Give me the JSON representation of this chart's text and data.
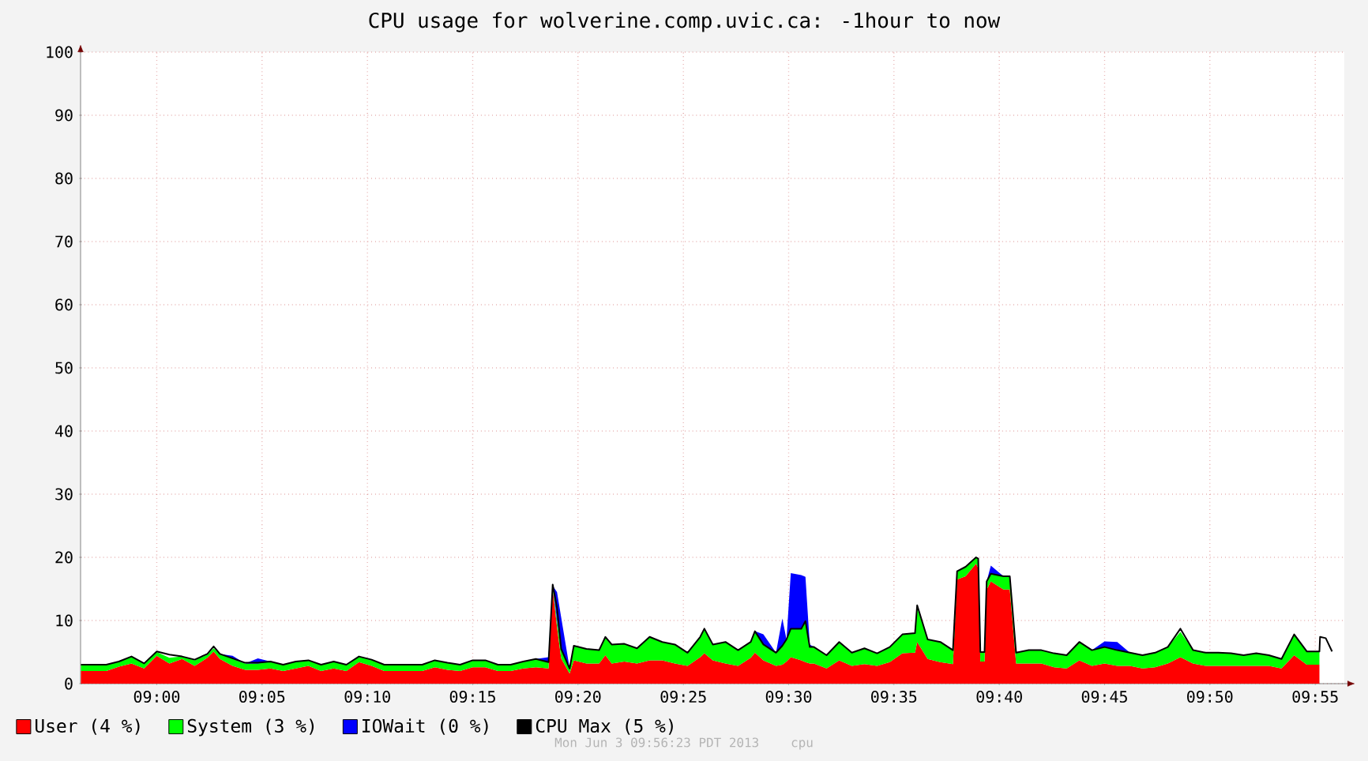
{
  "chart_data": {
    "type": "area",
    "title": "CPU usage for wolverine.comp.uvic.ca: -1hour to now",
    "stacked": true,
    "grid": true,
    "legend": "bottom",
    "xlim": [
      8.9397,
      9.9397
    ],
    "ylim": [
      0,
      100
    ],
    "xticks": [
      {
        "value": 9.0,
        "label": "09:00"
      },
      {
        "value": 9.0833,
        "label": "09:05"
      },
      {
        "value": 9.1667,
        "label": "09:10"
      },
      {
        "value": 9.25,
        "label": "09:15"
      },
      {
        "value": 9.3333,
        "label": "09:20"
      },
      {
        "value": 9.4167,
        "label": "09:25"
      },
      {
        "value": 9.5,
        "label": "09:30"
      },
      {
        "value": 9.5833,
        "label": "09:35"
      },
      {
        "value": 9.6667,
        "label": "09:40"
      },
      {
        "value": 9.75,
        "label": "09:45"
      },
      {
        "value": 9.8333,
        "label": "09:50"
      },
      {
        "value": 9.9167,
        "label": "09:55"
      }
    ],
    "yticks": [
      0,
      10,
      20,
      30,
      40,
      50,
      60,
      70,
      80,
      90,
      100
    ],
    "x": [
      8.94,
      8.95,
      8.96,
      8.97,
      8.98,
      8.99,
      9.0,
      9.01,
      9.02,
      9.03,
      9.04,
      9.045,
      9.05,
      9.06,
      9.07,
      9.08,
      9.09,
      9.1,
      9.11,
      9.12,
      9.13,
      9.14,
      9.15,
      9.16,
      9.17,
      9.18,
      9.19,
      9.2,
      9.21,
      9.22,
      9.23,
      9.24,
      9.25,
      9.26,
      9.27,
      9.28,
      9.29,
      9.3,
      9.31,
      9.3133,
      9.3167,
      9.32,
      9.3267,
      9.33,
      9.34,
      9.35,
      9.355,
      9.36,
      9.37,
      9.38,
      9.39,
      9.4,
      9.41,
      9.42,
      9.43,
      9.4333,
      9.44,
      9.45,
      9.46,
      9.47,
      9.4733,
      9.48,
      9.49,
      9.495,
      9.4983,
      9.5017,
      9.51,
      9.5133,
      9.5167,
      9.52,
      9.53,
      9.54,
      9.55,
      9.56,
      9.57,
      9.58,
      9.59,
      9.6,
      9.6017,
      9.61,
      9.62,
      9.63,
      9.6333,
      9.64,
      9.6483,
      9.65,
      9.6517,
      9.655,
      9.6567,
      9.66,
      9.67,
      9.675,
      9.68,
      9.69,
      9.7,
      9.71,
      9.72,
      9.73,
      9.74,
      9.75,
      9.76,
      9.77,
      9.78,
      9.79,
      9.8,
      9.81,
      9.82,
      9.83,
      9.84,
      9.85,
      9.86,
      9.87,
      9.88,
      9.89,
      9.9,
      9.91,
      9.92,
      9.9205,
      9.925,
      9.93
    ],
    "series": [
      {
        "name": "User (4 %)",
        "color": "#ff0000",
        "values": [
          2,
          2,
          2,
          2.7,
          3.2,
          2.4,
          4.4,
          3.2,
          3.9,
          2.8,
          4.1,
          5.1,
          3.9,
          2.8,
          2.2,
          2.2,
          2.4,
          2,
          2.4,
          2.8,
          2,
          2.4,
          2,
          3.4,
          2.8,
          2,
          2,
          2,
          2,
          2.6,
          2.2,
          2,
          2.6,
          2.6,
          2,
          2,
          2.4,
          2.6,
          2.4,
          15,
          9,
          4,
          1.6,
          3.7,
          3.2,
          3.2,
          4.5,
          3.2,
          3.5,
          3.2,
          3.7,
          3.7,
          3.2,
          2.8,
          4.2,
          4.8,
          3.7,
          3.2,
          2.8,
          4.1,
          4.9,
          3.7,
          2.8,
          3,
          3.5,
          4.2,
          3.7,
          3.4,
          3.2,
          3.2,
          2.4,
          3.7,
          2.8,
          3.1,
          2.8,
          3.4,
          4.8,
          4.9,
          6.6,
          3.9,
          3.4,
          3.1,
          16.5,
          17,
          19,
          18.3,
          3.5,
          3.5,
          14.9,
          16.2,
          14.9,
          14.9,
          3.2,
          3.2,
          3.2,
          2.6,
          2.4,
          3.7,
          2.8,
          3.2,
          2.8,
          2.8,
          2.4,
          2.6,
          3.2,
          4.2,
          3.2,
          2.8,
          2.8,
          2.8,
          2.8,
          2.8,
          2.8,
          2.4,
          4.5,
          3,
          3,
          null,
          null,
          null
        ]
      },
      {
        "name": "System (3 %)",
        "color": "#00ff00",
        "values": [
          1,
          1,
          1,
          0.8,
          1.1,
          0.8,
          0.6,
          0.9,
          0.4,
          0.9,
          0.5,
          0.5,
          0.8,
          1.1,
          1,
          1,
          1.1,
          1,
          1.1,
          0.9,
          1,
          1.1,
          1,
          0.9,
          1,
          1,
          1,
          1,
          1,
          1.1,
          1.1,
          1,
          1.1,
          1.1,
          1,
          1,
          1.1,
          1.3,
          1,
          0.5,
          1,
          1.5,
          0.8,
          2.3,
          2.3,
          2.1,
          2.9,
          3,
          2.8,
          2.4,
          3.7,
          2.9,
          3,
          2.1,
          3.2,
          3.9,
          2.5,
          3.4,
          2.5,
          2.5,
          3.4,
          2.5,
          2.1,
          3,
          3.5,
          4.5,
          5,
          6.5,
          2.6,
          2.6,
          2.1,
          2.9,
          2.1,
          2.5,
          2,
          2.4,
          3,
          3.1,
          5.4,
          3.1,
          3.2,
          2.2,
          1.3,
          1.5,
          1,
          1.5,
          1.5,
          1.5,
          1.3,
          1.2,
          2.1,
          2.1,
          1.7,
          2.1,
          2.1,
          2.2,
          2.1,
          2.9,
          2.5,
          2.6,
          2.5,
          2.1,
          2.1,
          2.3,
          2.6,
          4,
          2.1,
          2.1,
          2.1,
          2,
          1.7,
          2,
          1.7,
          1.5,
          3.3,
          2.1,
          2.1,
          null,
          null,
          null
        ]
      },
      {
        "name": "IOWait (0 %)",
        "color": "#0000ff",
        "values": [
          0,
          0,
          0,
          0,
          0,
          0,
          0,
          0,
          0,
          0,
          0,
          0,
          0,
          0.5,
          0,
          0.8,
          0,
          0,
          0,
          0,
          0,
          0,
          0,
          0,
          0,
          0,
          0,
          0,
          0,
          0,
          0,
          0,
          0,
          0,
          0,
          0,
          0,
          0,
          0.8,
          0,
          4.5,
          5,
          0,
          0,
          0,
          0,
          0,
          0,
          0,
          0,
          0,
          0,
          0,
          0,
          0,
          0,
          0,
          0,
          0,
          0,
          0,
          1.6,
          0,
          4.3,
          0,
          8.8,
          8.5,
          7,
          0.4,
          0,
          0,
          0,
          0,
          0,
          0,
          0,
          0,
          0,
          0,
          0,
          0,
          0,
          0,
          0,
          0,
          0,
          0,
          0,
          0,
          1.3,
          0,
          0,
          0,
          0,
          0,
          0,
          0,
          0,
          0,
          0.9,
          1.3,
          0,
          0,
          0,
          0,
          0,
          0,
          0,
          0,
          0,
          0,
          0,
          0,
          0,
          0,
          0,
          0,
          null,
          null,
          null
        ]
      },
      {
        "name": "CPU Max (5 %)",
        "type": "line",
        "color": "#000000",
        "values": [
          3,
          3,
          3,
          3.5,
          4.3,
          3.2,
          5.1,
          4.6,
          4.3,
          3.8,
          4.7,
          5.9,
          4.7,
          4,
          3.3,
          3.3,
          3.5,
          3,
          3.5,
          3.7,
          3,
          3.5,
          3,
          4.3,
          3.8,
          3,
          3,
          3,
          3,
          3.7,
          3.3,
          3,
          3.7,
          3.7,
          3,
          3,
          3.5,
          3.9,
          3.4,
          15.7,
          12,
          5.5,
          2.4,
          6,
          5.5,
          5.3,
          7.4,
          6.2,
          6.3,
          5.6,
          7.4,
          6.6,
          6.2,
          4.9,
          7.4,
          8.7,
          6.2,
          6.6,
          5.3,
          6.6,
          8.3,
          6.2,
          4.9,
          6,
          7,
          8.7,
          8.7,
          9.9,
          5.8,
          5.8,
          4.5,
          6.6,
          4.9,
          5.6,
          4.8,
          5.8,
          7.8,
          8,
          12.4,
          7,
          6.6,
          5.3,
          17.8,
          18.5,
          20,
          19.8,
          5,
          5,
          16.2,
          17.4,
          17,
          17,
          4.9,
          5.3,
          5.3,
          4.8,
          4.5,
          6.6,
          5.3,
          5.8,
          5.3,
          4.9,
          4.5,
          4.9,
          5.8,
          8.7,
          5.3,
          4.9,
          4.9,
          4.8,
          4.5,
          4.8,
          4.5,
          3.9,
          7.8,
          5.1,
          5.1,
          7.4,
          7.2,
          5.1
        ]
      }
    ],
    "annotations": [
      "Mon Jun 3 09:56:23 PDT 2013",
      "cpu"
    ]
  }
}
